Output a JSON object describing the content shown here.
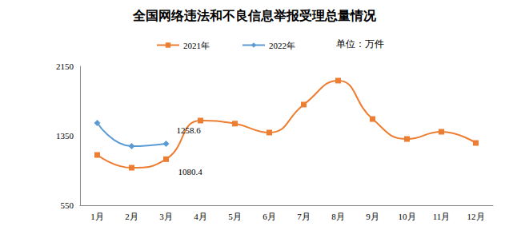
{
  "chart_data": {
    "type": "line",
    "title": "全国网络违法和不良信息举报受理总量情况",
    "y_label": "单位：万件",
    "categories": [
      "1月",
      "2月",
      "3月",
      "4月",
      "5月",
      "6月",
      "7月",
      "8月",
      "9月",
      "10月",
      "11月",
      "12月"
    ],
    "series": [
      {
        "name": "2021年",
        "color": "#ed7d31",
        "marker": "square",
        "line_style": "smooth",
        "values": [
          1129,
          982,
          1080.4,
          1525,
          1490,
          1387,
          1709,
          1985,
          1543,
          1313,
          1396,
          1267
        ]
      },
      {
        "name": "2022年",
        "color": "#5b9bd5",
        "marker": "diamond",
        "line_style": "smooth",
        "values": [
          1497,
          1230,
          1258.6,
          null,
          null,
          null,
          null,
          null,
          null,
          null,
          null,
          null
        ]
      }
    ],
    "annotations": [
      {
        "series": "2022年",
        "category": "3月",
        "text": "1258.6"
      },
      {
        "series": "2021年",
        "category": "3月",
        "text": "1080.4"
      }
    ],
    "ylim": [
      550,
      2150
    ],
    "yticks": [
      550,
      1350,
      2150
    ],
    "grid": false,
    "legend": "top"
  }
}
